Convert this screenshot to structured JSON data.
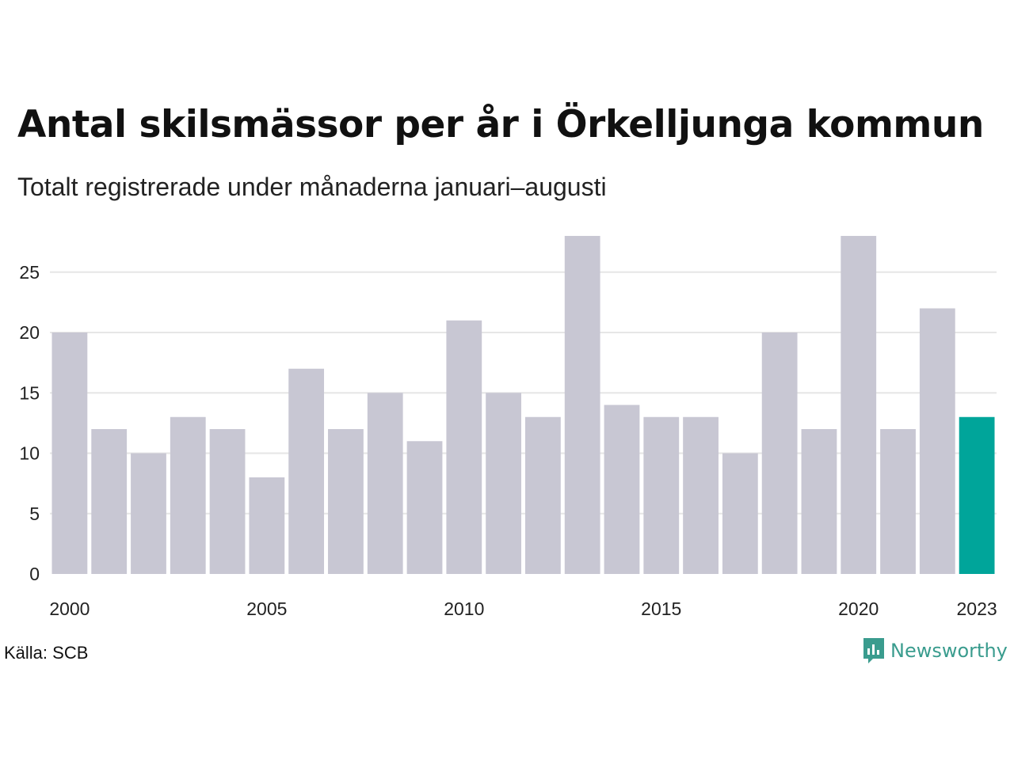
{
  "header": {
    "title": "Antal skilsmässor per år i Örkelljunga kommun",
    "subtitle": "Totalt registrerade under månaderna januari–augusti"
  },
  "footer": {
    "source": "Källa: SCB",
    "brand": "Newsworthy"
  },
  "colors": {
    "bar": "#c8c7d3",
    "highlight": "#00a59a",
    "grid": "#e6e6e6",
    "logo": "#3a9c8e"
  },
  "chart_data": {
    "type": "bar",
    "title": "Antal skilsmässor per år i Örkelljunga kommun",
    "subtitle": "Totalt registrerade under månaderna januari–augusti",
    "categories": [
      2000,
      2001,
      2002,
      2003,
      2004,
      2005,
      2006,
      2007,
      2008,
      2009,
      2010,
      2011,
      2012,
      2013,
      2014,
      2015,
      2016,
      2017,
      2018,
      2019,
      2020,
      2021,
      2022,
      2023
    ],
    "values": [
      20,
      12,
      10,
      13,
      12,
      8,
      17,
      12,
      15,
      11,
      21,
      15,
      13,
      28,
      14,
      13,
      13,
      10,
      20,
      12,
      28,
      12,
      22,
      13
    ],
    "highlight_category": 2023,
    "x_tick_labels": [
      2000,
      2005,
      2010,
      2015,
      2020,
      2023
    ],
    "y_ticks": [
      0,
      5,
      10,
      15,
      20,
      25
    ],
    "ylim": [
      0,
      28
    ],
    "xlabel": "",
    "ylabel": "",
    "grid": true,
    "legend": "none"
  }
}
